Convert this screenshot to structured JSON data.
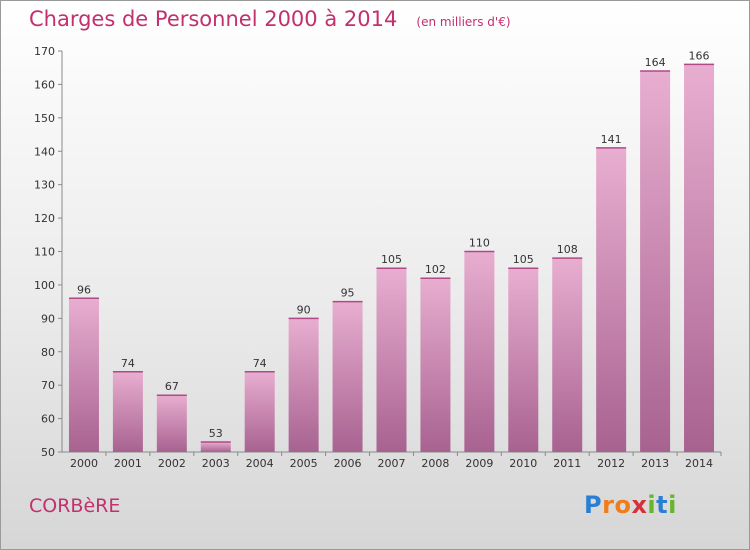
{
  "title": "Charges de Personnel 2000 à 2014",
  "subtitle": "(en milliers d'€)",
  "commune": "CORBèRE",
  "logo": {
    "text": "Proxiti",
    "letters": [
      "P",
      "r",
      "o",
      "x",
      "i",
      "t",
      "i"
    ],
    "colors": [
      "#2a7fd4",
      "#f07c1a",
      "#f07c1a",
      "#d8303a",
      "#67b52c",
      "#2a7fd4",
      "#67b52c"
    ]
  },
  "colors": {
    "accent": "#c2306e",
    "bar_top": "#e8aed0",
    "bar_bottom": "#a86290"
  },
  "chart_data": {
    "type": "bar",
    "categories": [
      "2000",
      "2001",
      "2002",
      "2003",
      "2004",
      "2005",
      "2006",
      "2007",
      "2008",
      "2009",
      "2010",
      "2011",
      "2012",
      "2013",
      "2014"
    ],
    "values": [
      96,
      74,
      67,
      53,
      74,
      90,
      95,
      105,
      102,
      110,
      105,
      108,
      141,
      164,
      166
    ],
    "title": "Charges de Personnel 2000 à 2014",
    "xlabel": "",
    "ylabel": "",
    "ylim": [
      50,
      170
    ],
    "yticks": [
      50,
      60,
      70,
      80,
      90,
      100,
      110,
      120,
      130,
      140,
      150,
      160,
      170
    ],
    "grid": false,
    "legend": "none"
  }
}
